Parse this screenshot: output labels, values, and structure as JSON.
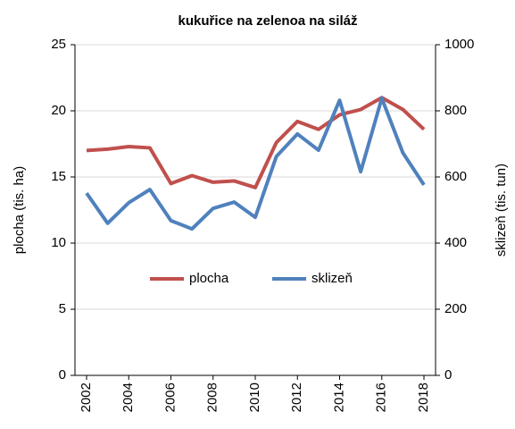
{
  "chart_data": {
    "type": "line",
    "title": "kukuřice na zelenoa na siláž",
    "ylabel": "plocha (tis. ha)",
    "y2label": "sklizeň (tis. tun)",
    "x": [
      2002,
      2003,
      2004,
      2005,
      2006,
      2007,
      2008,
      2009,
      2010,
      2011,
      2012,
      2013,
      2014,
      2015,
      2016,
      2017,
      2018
    ],
    "series": [
      {
        "name": "plocha",
        "color": "#c0504d",
        "values": [
          17.0,
          17.1,
          17.3,
          17.2,
          14.5,
          15.1,
          14.6,
          14.7,
          14.2,
          17.6,
          19.2,
          18.6,
          19.7,
          20.1,
          21.0,
          20.1,
          18.6
        ]
      },
      {
        "name": "sklizeň",
        "color": "#4f81bd",
        "axis": "y2",
        "values": [
          551,
          460,
          522,
          562,
          468,
          443,
          505,
          524,
          478,
          662,
          730,
          681,
          832,
          616,
          838,
          673,
          576
        ]
      }
    ],
    "xlim": [
      2001.45,
      2018.55
    ],
    "xticks": [
      2002,
      2004,
      2006,
      2008,
      2010,
      2012,
      2014,
      2016,
      2018
    ],
    "ylim": [
      0,
      25
    ],
    "yticks": [
      0,
      5,
      10,
      15,
      20,
      25
    ],
    "y2lim": [
      0,
      1000
    ],
    "y2ticks": [
      0,
      200,
      400,
      600,
      800,
      1000
    ],
    "grid": true,
    "legend": "center"
  }
}
